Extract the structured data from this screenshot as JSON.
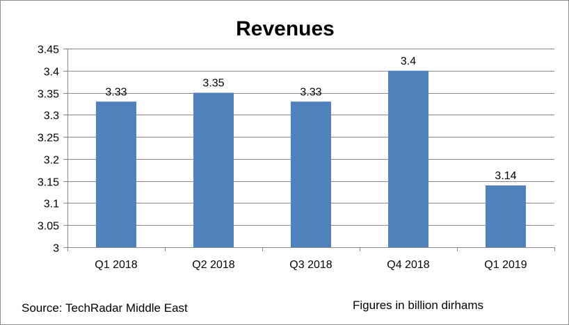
{
  "chart_data": {
    "type": "bar",
    "title": "Revenues",
    "categories": [
      "Q1 2018",
      "Q2 2018",
      "Q3 2018",
      "Q4 2018",
      "Q1 2019"
    ],
    "values": [
      3.33,
      3.35,
      3.33,
      3.4,
      3.14
    ],
    "data_labels": [
      "3.33",
      "3.35",
      "3.33",
      "3.4",
      "3.14"
    ],
    "ylim": [
      3,
      3.45
    ],
    "yticks": [
      3,
      3.05,
      3.1,
      3.15,
      3.2,
      3.25,
      3.3,
      3.35,
      3.4,
      3.45
    ],
    "ytick_labels": [
      "3",
      "3.05",
      "3.1",
      "3.15",
      "3.2",
      "3.25",
      "3.3",
      "3.35",
      "3.4",
      "3.45"
    ],
    "grid": true,
    "legend": "none",
    "bar_color": "#4f81bd",
    "grid_color": "#868686"
  },
  "footer": {
    "source": "Source: TechRadar Middle East",
    "units": "Figures in billion dirhams"
  }
}
